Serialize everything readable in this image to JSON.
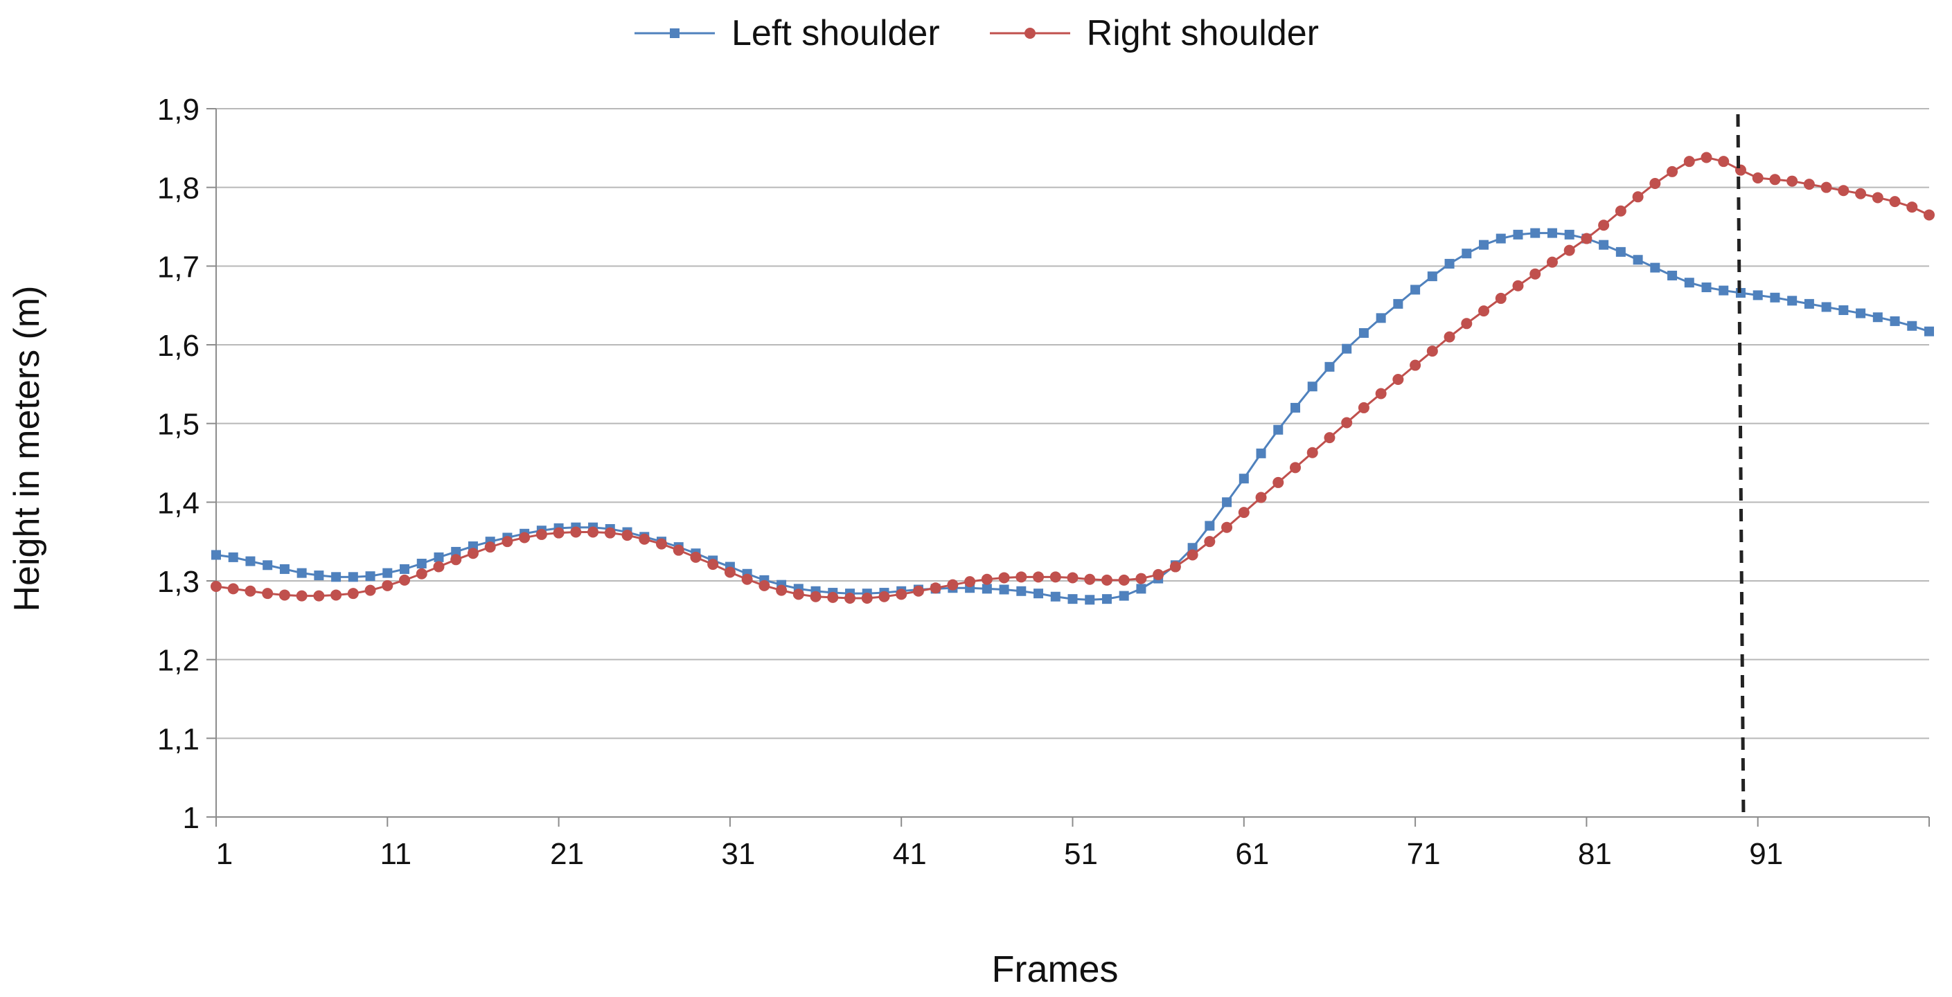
{
  "chart_data": {
    "type": "line",
    "title": "",
    "xlabel": "Frames",
    "ylabel": "Height in meters (m)",
    "legend_position": "top-center",
    "grid": "horizontal",
    "ylim": [
      1,
      1.9
    ],
    "xlim": [
      1,
      101
    ],
    "y_ticks": [
      "1",
      "1,1",
      "1,2",
      "1,3",
      "1,4",
      "1,5",
      "1,6",
      "1,7",
      "1,8",
      "1,9"
    ],
    "x_ticks": [
      "1",
      "11",
      "21",
      "31",
      "41",
      "51",
      "61",
      "71",
      "81",
      "91"
    ],
    "x": [
      1,
      2,
      3,
      4,
      5,
      6,
      7,
      8,
      9,
      10,
      11,
      12,
      13,
      14,
      15,
      16,
      17,
      18,
      19,
      20,
      21,
      22,
      23,
      24,
      25,
      26,
      27,
      28,
      29,
      30,
      31,
      32,
      33,
      34,
      35,
      36,
      37,
      38,
      39,
      40,
      41,
      42,
      43,
      44,
      45,
      46,
      47,
      48,
      49,
      50,
      51,
      52,
      53,
      54,
      55,
      56,
      57,
      58,
      59,
      60,
      61,
      62,
      63,
      64,
      65,
      66,
      67,
      68,
      69,
      70,
      71,
      72,
      73,
      74,
      75,
      76,
      77,
      78,
      79,
      80,
      81,
      82,
      83,
      84,
      85,
      86,
      87,
      88,
      89,
      90,
      91,
      92,
      93,
      94,
      95,
      96,
      97,
      98,
      99,
      100,
      101
    ],
    "vline": {
      "x": 90,
      "style": "dashed",
      "color": "#222222"
    },
    "series": [
      {
        "name": "Left shoulder",
        "color": "#4f81bd",
        "values": [
          1.333,
          1.33,
          1.325,
          1.32,
          1.315,
          1.31,
          1.307,
          1.305,
          1.305,
          1.306,
          1.31,
          1.315,
          1.322,
          1.33,
          1.337,
          1.344,
          1.35,
          1.355,
          1.36,
          1.364,
          1.367,
          1.368,
          1.368,
          1.366,
          1.362,
          1.356,
          1.35,
          1.343,
          1.335,
          1.326,
          1.318,
          1.309,
          1.301,
          1.295,
          1.29,
          1.287,
          1.285,
          1.284,
          1.284,
          1.285,
          1.287,
          1.289,
          1.29,
          1.291,
          1.291,
          1.29,
          1.289,
          1.287,
          1.284,
          1.28,
          1.277,
          1.276,
          1.277,
          1.281,
          1.29,
          1.303,
          1.32,
          1.342,
          1.37,
          1.4,
          1.43,
          1.462,
          1.492,
          1.52,
          1.547,
          1.572,
          1.595,
          1.615,
          1.634,
          1.652,
          1.67,
          1.687,
          1.703,
          1.716,
          1.727,
          1.735,
          1.74,
          1.742,
          1.742,
          1.74,
          1.735,
          1.727,
          1.718,
          1.708,
          1.698,
          1.688,
          1.679,
          1.673,
          1.669,
          1.666,
          1.663,
          1.66,
          1.656,
          1.652,
          1.648,
          1.644,
          1.64,
          1.635,
          1.63,
          1.624,
          1.617
        ]
      },
      {
        "name": "Right shoulder",
        "color": "#c0504d",
        "values": [
          1.293,
          1.29,
          1.287,
          1.284,
          1.282,
          1.281,
          1.281,
          1.282,
          1.284,
          1.288,
          1.294,
          1.301,
          1.309,
          1.318,
          1.327,
          1.335,
          1.343,
          1.35,
          1.355,
          1.359,
          1.361,
          1.362,
          1.362,
          1.361,
          1.358,
          1.353,
          1.347,
          1.339,
          1.33,
          1.321,
          1.311,
          1.302,
          1.294,
          1.288,
          1.283,
          1.28,
          1.279,
          1.278,
          1.278,
          1.28,
          1.283,
          1.287,
          1.291,
          1.295,
          1.299,
          1.302,
          1.304,
          1.305,
          1.305,
          1.305,
          1.304,
          1.302,
          1.301,
          1.301,
          1.303,
          1.308,
          1.318,
          1.333,
          1.35,
          1.368,
          1.387,
          1.406,
          1.425,
          1.444,
          1.463,
          1.482,
          1.501,
          1.52,
          1.538,
          1.556,
          1.574,
          1.592,
          1.61,
          1.627,
          1.643,
          1.659,
          1.675,
          1.69,
          1.705,
          1.72,
          1.735,
          1.752,
          1.77,
          1.788,
          1.805,
          1.82,
          1.833,
          1.838,
          1.833,
          1.822,
          1.812,
          1.81,
          1.808,
          1.804,
          1.8,
          1.796,
          1.792,
          1.787,
          1.782,
          1.775,
          1.765
        ]
      }
    ]
  }
}
